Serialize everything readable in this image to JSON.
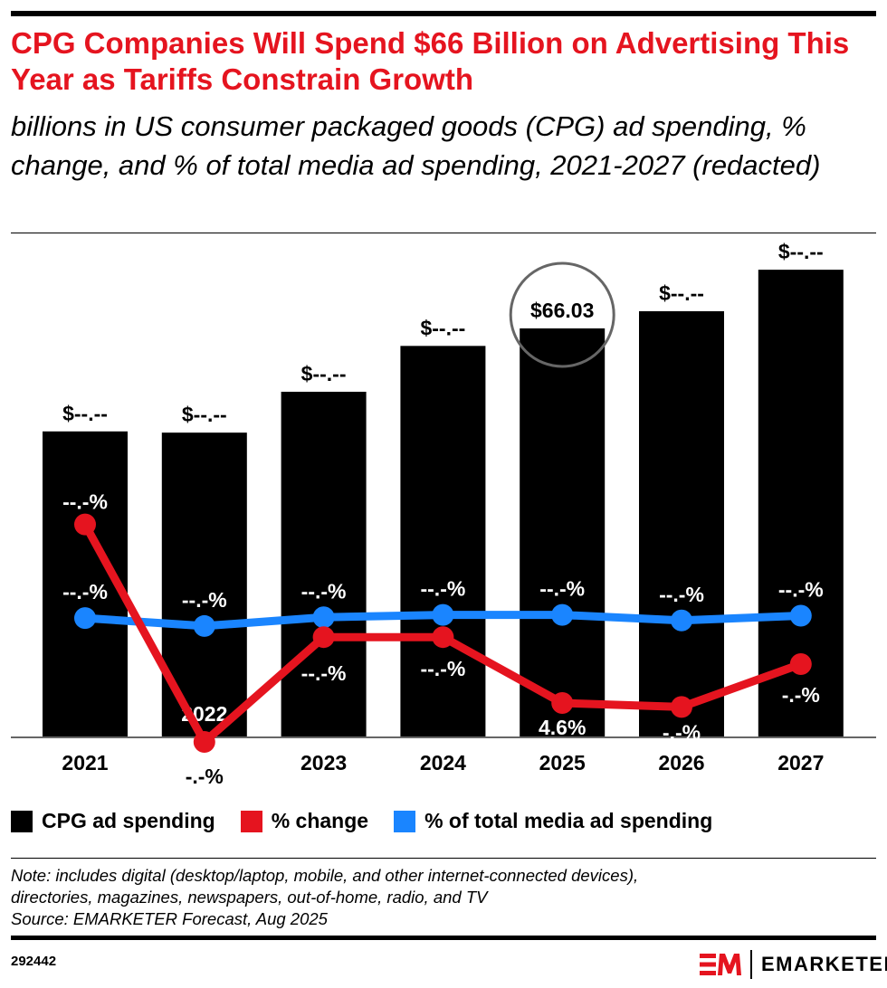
{
  "title": "CPG Companies Will Spend $66 Billion on Advertising This Year as Tariffs Constrain Growth",
  "subtitle": "billions in US consumer packaged goods (CPG) ad spending, % change, and % of total media ad spending, 2021-2027 (redacted)",
  "chart_data": {
    "type": "bar",
    "categories": [
      "2021",
      "2022",
      "2023",
      "2024",
      "2025",
      "2026",
      "2027"
    ],
    "series": [
      {
        "name": "CPG ad spending",
        "type": "bar",
        "color": "#000000",
        "values": [
          49.4,
          49.2,
          55.8,
          63.2,
          66.03,
          68.8,
          75.5
        ],
        "labels": [
          "$--.--",
          "$--.--",
          "$--.--",
          "$--.--",
          "$66.03",
          "$--.--",
          "$--.--"
        ]
      },
      {
        "name": "% change",
        "type": "line",
        "color": "#e5141f",
        "values": [
          27.1,
          -0.3,
          12.9,
          12.9,
          4.6,
          4.1,
          9.5
        ],
        "labels": [
          "--.-%",
          "-.-%",
          "--.-%",
          "--.-%",
          "4.6%",
          "-.-%",
          "-.-%"
        ]
      },
      {
        "name": "% of total media ad spending",
        "type": "line",
        "color": "#1a85ff",
        "values": [
          15.3,
          14.3,
          15.4,
          15.7,
          15.7,
          15.0,
          15.6
        ],
        "labels": [
          "--.-%",
          "--.-%",
          "--.-%",
          "--.-%",
          "--.-%",
          "--.-%",
          "--.-%"
        ]
      }
    ],
    "highlight": "2025",
    "grid": false,
    "legend": "bottom"
  },
  "note": [
    "Note: includes digital (desktop/laptop, mobile, and other internet-connected devices),",
    "directories, magazines, newspapers, out-of-home, radio, and TV",
    "Source: EMARKETER Forecast, Aug 2025"
  ],
  "footer": {
    "chart_id": "292442",
    "brand": "EMARKETER",
    "logo_mark": "EM"
  }
}
